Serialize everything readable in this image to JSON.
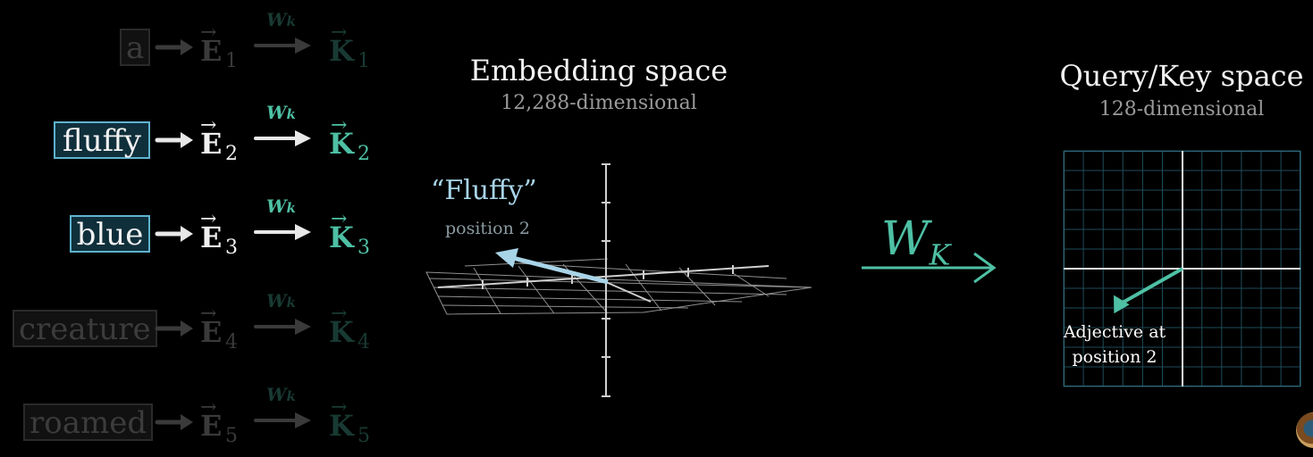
{
  "rows": [
    {
      "token": "a",
      "sub": "1",
      "wk": "W",
      "wk_sub": "k",
      "e_letter": "E",
      "k_letter": "K",
      "state": "dim"
    },
    {
      "token": "fluffy",
      "sub": "2",
      "wk": "W",
      "wk_sub": "k",
      "e_letter": "E",
      "k_letter": "K",
      "state": "active"
    },
    {
      "token": "blue",
      "sub": "3",
      "wk": "W",
      "wk_sub": "k",
      "e_letter": "E",
      "k_letter": "K",
      "state": "active"
    },
    {
      "token": "creature",
      "sub": "4",
      "wk": "W",
      "wk_sub": "k",
      "e_letter": "E",
      "k_letter": "K",
      "state": "dim"
    },
    {
      "token": "roamed",
      "sub": "5",
      "wk": "W",
      "wk_sub": "k",
      "e_letter": "E",
      "k_letter": "K",
      "state": "dim"
    }
  ],
  "embedding": {
    "title": "Embedding space",
    "subtitle": "12,288-dimensional",
    "vector_label": "“Fluffy”",
    "vector_sublabel": "position 2"
  },
  "transform": {
    "letter": "W",
    "sub": "K"
  },
  "qk": {
    "title": "Query/Key space",
    "subtitle": "128-dimensional",
    "vector_label_line1": "Adjective at",
    "vector_label_line2": "position 2"
  },
  "colors": {
    "teal": "#4ec0a4",
    "light_blue": "#a8d4e8",
    "token_border": "#5fb3cf",
    "grid": "#1e4d5a"
  },
  "icons": [
    "right-arrow-icon",
    "vector-arrow-icon",
    "channel-logo-icon"
  ]
}
